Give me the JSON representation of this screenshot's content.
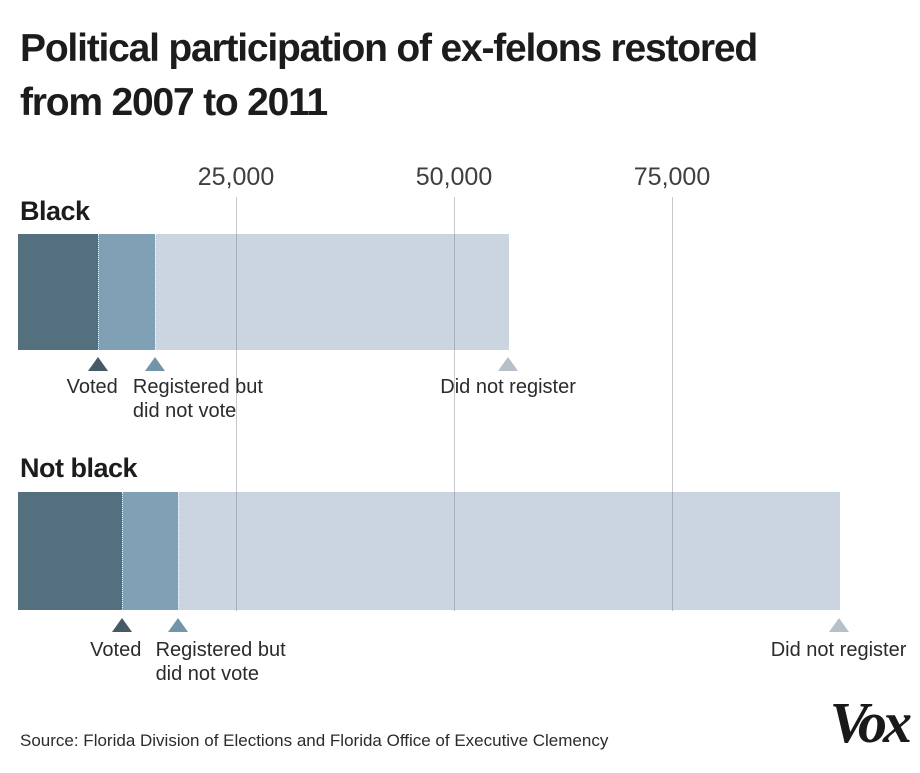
{
  "header": {
    "title_line1": "Political participation of ex-felons restored",
    "title_line2": "from 2007 to 2011"
  },
  "footer": {
    "source": "Source: Florida Division of Elections and Florida Office of Executive Clemency",
    "brand": "Vox"
  },
  "colors": {
    "background": "#ffffff",
    "title_text": "#1c1c1c",
    "axis_text": "#3f3f3f",
    "annotation_text": "#2b2b2b",
    "gridline": "#c9ced3"
  },
  "chart_data": {
    "type": "bar",
    "orientation": "horizontal",
    "stacked": true,
    "title": "Political participation of ex-felons restored from 2007 to 2011",
    "categories": [
      "Black",
      "Not black"
    ],
    "series": [
      {
        "name": "Voted",
        "values": [
          9200,
          11900
        ]
      },
      {
        "name": "Registered but did not vote",
        "values": [
          6500,
          6400
        ]
      },
      {
        "name": "Did not register",
        "values": [
          40500,
          75800
        ]
      }
    ],
    "segment_colors": [
      "#54707e",
      "#7fa0b5",
      "#cbd5e0"
    ],
    "marker_colors": [
      "#455a65",
      "#7295aa",
      "#b6c0cb"
    ],
    "segment_label_lines": [
      [
        "Voted"
      ],
      [
        "Registered but",
        "did not vote"
      ],
      [
        "Did not register"
      ]
    ],
    "xlim": [
      0,
      103000
    ],
    "x_ticks": [
      25000,
      50000,
      75000
    ],
    "x_tick_labels": [
      "25,000",
      "50,000",
      "75,000"
    ],
    "gridlines": true,
    "legend": "inline-annotations"
  }
}
